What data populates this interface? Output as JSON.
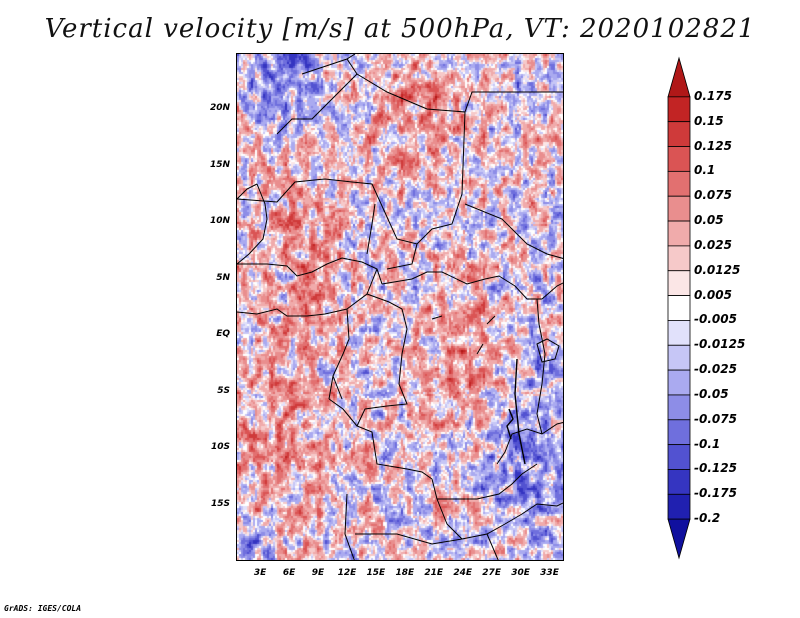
{
  "title": "Vertical velocity [m/s] at 500hPa, VT: 2020102821",
  "footer": "GrADS: IGES/COLA",
  "lat_labels": [
    "20N",
    "15N",
    "10N",
    "5N",
    "EQ",
    "5S",
    "10S",
    "15S"
  ],
  "lat_values": [
    20,
    15,
    10,
    5,
    0,
    -5,
    -10,
    -15
  ],
  "lon_labels": [
    "3E",
    "6E",
    "9E",
    "12E",
    "15E",
    "18E",
    "21E",
    "24E",
    "27E",
    "30E",
    "33E"
  ],
  "lon_values": [
    3,
    6,
    9,
    12,
    15,
    18,
    21,
    24,
    27,
    30,
    33
  ],
  "domain": {
    "lon_min": 0.5,
    "lon_max": 34.5,
    "lat_min": -20.0,
    "lat_max": 25.0
  },
  "colorbar": {
    "labels": [
      "0.175",
      "0.15",
      "0.125",
      "0.1",
      "0.075",
      "0.05",
      "0.025",
      "0.0125",
      "0.005",
      "-0.005",
      "-0.0125",
      "-0.025",
      "-0.05",
      "-0.075",
      "-0.1",
      "-0.125",
      "-0.175",
      "-0.2"
    ],
    "colors": [
      "#b01818",
      "#c22424",
      "#cf3a3a",
      "#da5454",
      "#e27070",
      "#e98e8e",
      "#f0abab",
      "#f6c9c9",
      "#fbe6e6",
      "#ffffff",
      "#e1e1fb",
      "#c6c6f6",
      "#aaaaf0",
      "#8d8de7",
      "#6f6fdd",
      "#5252d1",
      "#3535c1",
      "#2020b0",
      "#10109e"
    ]
  }
}
